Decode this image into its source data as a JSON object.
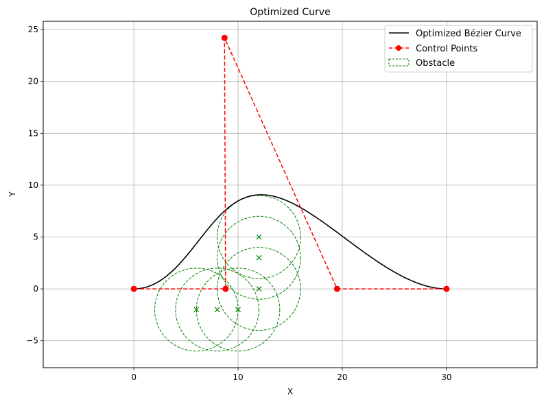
{
  "chart_data": {
    "type": "line",
    "title": "Optimized Curve",
    "xlabel": "X",
    "ylabel": "Y",
    "xlim": [
      -8.7,
      38.7
    ],
    "ylim": [
      -7.6,
      25.8
    ],
    "xticks": [
      0,
      10,
      20,
      30
    ],
    "yticks": [
      -5,
      0,
      5,
      10,
      15,
      20,
      25
    ],
    "grid": true,
    "legend_position": "top-right",
    "colors": {
      "curve": "#000000",
      "control": "#ff0000",
      "obstacle": "#008000"
    },
    "series": [
      {
        "name": "Optimized Bézier Curve",
        "kind": "bezier-curve",
        "style": "solid"
      },
      {
        "name": "Control Points",
        "kind": "polyline-with-markers",
        "style": "dashed",
        "points": [
          [
            0,
            0
          ],
          [
            8.8,
            0
          ],
          [
            8.7,
            24.2
          ],
          [
            19.5,
            0
          ],
          [
            30,
            0
          ]
        ]
      },
      {
        "name": "Obstacle",
        "kind": "circles",
        "style": "dashed",
        "circles": [
          {
            "cx": 6,
            "cy": -2,
            "r": 4
          },
          {
            "cx": 8,
            "cy": -2,
            "r": 4
          },
          {
            "cx": 10,
            "cy": -2,
            "r": 4
          },
          {
            "cx": 12,
            "cy": 0,
            "r": 4
          },
          {
            "cx": 12,
            "cy": 3,
            "r": 4
          },
          {
            "cx": 12,
            "cy": 5,
            "r": 4
          }
        ]
      }
    ]
  }
}
